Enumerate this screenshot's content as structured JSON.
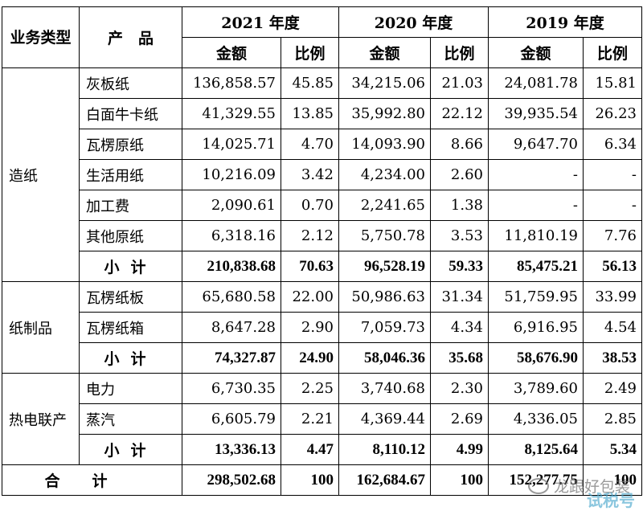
{
  "header": {
    "business_type": "业务类型",
    "product": "产　品",
    "years": [
      "2021 年度",
      "2020 年度",
      "2019 年度"
    ],
    "amount": "金额",
    "ratio": "比例"
  },
  "groups": [
    {
      "category": "造纸",
      "rows": [
        {
          "product": "灰板纸",
          "v": [
            "136,858.57",
            "45.85",
            "34,215.06",
            "21.03",
            "24,081.78",
            "15.81"
          ]
        },
        {
          "product": "白面牛卡纸",
          "v": [
            "41,329.55",
            "13.85",
            "35,992.80",
            "22.12",
            "39,935.54",
            "26.23"
          ]
        },
        {
          "product": "瓦楞原纸",
          "v": [
            "14,025.71",
            "4.70",
            "14,093.90",
            "8.66",
            "9,647.70",
            "6.34"
          ]
        },
        {
          "product": "生活用纸",
          "v": [
            "10,216.09",
            "3.42",
            "4,234.00",
            "2.60",
            "-",
            "-"
          ]
        },
        {
          "product": "加工费",
          "v": [
            "2,090.61",
            "0.70",
            "2,241.65",
            "1.38",
            "-",
            "-"
          ]
        },
        {
          "product": "其他原纸",
          "v": [
            "6,318.16",
            "2.12",
            "5,750.78",
            "3.53",
            "11,810.19",
            "7.76"
          ]
        }
      ],
      "subtotal": {
        "label": "小计",
        "v": [
          "210,838.68",
          "70.63",
          "96,528.19",
          "59.33",
          "85,475.21",
          "56.13"
        ]
      }
    },
    {
      "category": "纸制品",
      "rows": [
        {
          "product": "瓦楞纸板",
          "v": [
            "65,680.58",
            "22.00",
            "50,986.63",
            "31.34",
            "51,759.95",
            "33.99"
          ]
        },
        {
          "product": "瓦楞纸箱",
          "v": [
            "8,647.28",
            "2.90",
            "7,059.73",
            "4.34",
            "6,916.95",
            "4.54"
          ]
        }
      ],
      "subtotal": {
        "label": "小计",
        "v": [
          "74,327.87",
          "24.90",
          "58,046.36",
          "35.68",
          "58,676.90",
          "38.53"
        ]
      }
    },
    {
      "category": "热电联产",
      "rows": [
        {
          "product": "电力",
          "v": [
            "6,730.35",
            "2.25",
            "3,740.68",
            "2.30",
            "3,789.60",
            "2.49"
          ]
        },
        {
          "product": "蒸汽",
          "v": [
            "6,605.79",
            "2.21",
            "4,369.44",
            "2.69",
            "4,336.05",
            "2.85"
          ]
        }
      ],
      "subtotal": {
        "label": "小计",
        "v": [
          "13,336.13",
          "4.47",
          "8,110.12",
          "4.99",
          "8,125.64",
          "5.34"
        ]
      }
    }
  ],
  "total": {
    "label": "合计",
    "v": [
      "298,502.68",
      "100",
      "162,684.67",
      "100",
      "152,277.75",
      "100"
    ]
  },
  "watermark": {
    "line1": "龙跟好包装",
    "line2": "试税号"
  }
}
